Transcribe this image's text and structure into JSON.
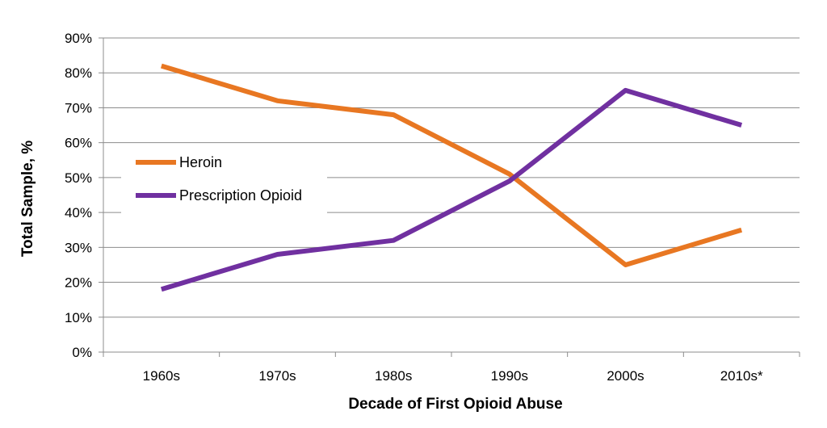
{
  "chart_data": {
    "type": "line",
    "title": "",
    "xlabel": "Decade of First Opioid Abuse",
    "ylabel": "Total Sample, %",
    "categories": [
      "1960s",
      "1970s",
      "1980s",
      "1990s",
      "2000s",
      "2010s*"
    ],
    "ylim": [
      0,
      90
    ],
    "yticks": [
      "0%",
      "10%",
      "20%",
      "30%",
      "40%",
      "50%",
      "60%",
      "70%",
      "80%",
      "90%"
    ],
    "grid": true,
    "legend_position": "left-middle",
    "series": [
      {
        "name": "Heroin",
        "color": "#E87722",
        "values": [
          82,
          72,
          68,
          51,
          25,
          35
        ]
      },
      {
        "name": "Prescription Opioid",
        "color": "#7030A0",
        "values": [
          18,
          28,
          32,
          49,
          75,
          65
        ]
      }
    ]
  }
}
